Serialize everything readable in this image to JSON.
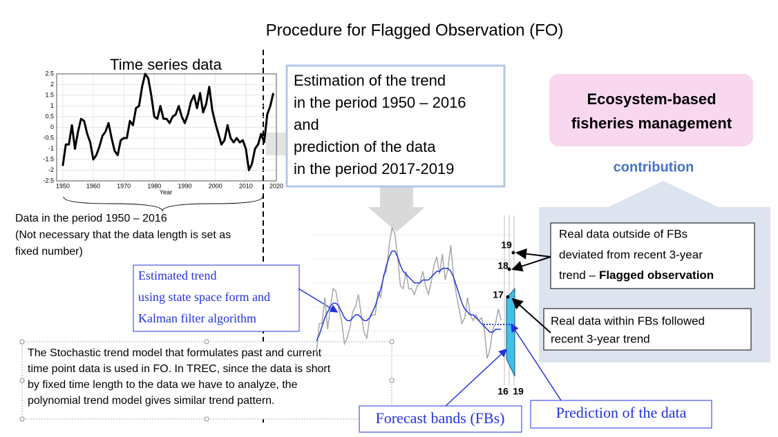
{
  "title": "Procedure for Flagged Observation (FO)",
  "chart_data": [
    {
      "type": "line",
      "title": "Time series data",
      "x_label": "Year",
      "color": "#000000",
      "grid": true,
      "x": [
        1950,
        1951,
        1952,
        1953,
        1954,
        1955,
        1956,
        1957,
        1958,
        1959,
        1960,
        1961,
        1962,
        1963,
        1964,
        1965,
        1966,
        1967,
        1968,
        1969,
        1970,
        1971,
        1972,
        1973,
        1974,
        1975,
        1976,
        1977,
        1978,
        1979,
        1980,
        1981,
        1982,
        1983,
        1984,
        1985,
        1986,
        1987,
        1988,
        1989,
        1990,
        1991,
        1992,
        1993,
        1994,
        1995,
        1996,
        1997,
        1998,
        1999,
        2000,
        2001,
        2002,
        2003,
        2004,
        2005,
        2006,
        2007,
        2008,
        2009,
        2010,
        2011,
        2012,
        2013,
        2014,
        2015,
        2016,
        2017,
        2018,
        2019
      ],
      "values": [
        -1.8,
        -0.8,
        -0.8,
        0.1,
        -1.0,
        -0.2,
        0.4,
        0.3,
        -0.3,
        -0.7,
        -1.5,
        -1.3,
        -0.9,
        -0.4,
        -0.2,
        0.2,
        -0.5,
        -1.1,
        -1.3,
        -0.6,
        -0.5,
        -0.5,
        0.3,
        0.1,
        0.9,
        1.0,
        1.9,
        2.5,
        2.3,
        1.5,
        0.5,
        0.4,
        1.0,
        0.4,
        0.4,
        0.2,
        0.5,
        0.6,
        1.0,
        0.5,
        0.2,
        0.6,
        1.2,
        1.5,
        0.9,
        1.6,
        0.7,
        1.1,
        1.9,
        0.8,
        0.2,
        -0.3,
        -0.8,
        -0.6,
        0.1,
        -0.5,
        -0.7,
        -0.5,
        -0.7,
        -0.6,
        -1.0,
        -2.0,
        -1.7,
        -1.0,
        -0.8,
        -0.3,
        -0.7,
        0.6,
        1.0,
        1.6
      ],
      "xlim": [
        1948,
        2020
      ],
      "xticks": [
        1950,
        1960,
        1970,
        1980,
        1990,
        2000,
        2010,
        2020
      ],
      "ylim": [
        -2.5,
        2.5
      ],
      "yticks": [
        2.5,
        2,
        1.5,
        1,
        0.5,
        0,
        -0.5,
        -1,
        -1.5,
        -2,
        -2.5
      ]
    },
    {
      "type": "line",
      "x": [
        1950,
        1951,
        1952,
        1953,
        1954,
        1955,
        1956,
        1957,
        1958,
        1959,
        1960,
        1961,
        1962,
        1963,
        1964,
        1965,
        1966,
        1967,
        1968,
        1969,
        1970,
        1971,
        1972,
        1973,
        1974,
        1975,
        1976,
        1977,
        1978,
        1979,
        1980,
        1981,
        1982,
        1983,
        1984,
        1985,
        1986,
        1987,
        1988,
        1989,
        1990,
        1991,
        1992,
        1993,
        1994,
        1995,
        1996,
        1997,
        1998,
        1999,
        2000,
        2001,
        2002,
        2003,
        2004,
        2005,
        2006,
        2007,
        2008,
        2009,
        2010,
        2011,
        2012,
        2013,
        2014,
        2015,
        2016
      ],
      "series": [
        {
          "color": "#a6a6a6",
          "values": [
            -1.8,
            -0.8,
            -0.8,
            0.1,
            -1.0,
            -0.2,
            0.4,
            0.3,
            -0.3,
            -0.7,
            -1.5,
            -1.3,
            -0.9,
            -0.4,
            -0.2,
            0.2,
            -0.5,
            -1.1,
            -1.3,
            -0.6,
            -0.5,
            -0.5,
            0.3,
            0.1,
            0.9,
            1.0,
            1.9,
            2.5,
            2.3,
            1.5,
            0.5,
            0.4,
            1.0,
            0.4,
            0.4,
            0.2,
            0.5,
            0.6,
            1.0,
            0.5,
            0.2,
            0.6,
            1.2,
            1.5,
            0.9,
            1.6,
            0.7,
            1.1,
            1.9,
            0.8,
            0.2,
            -0.3,
            -0.8,
            -0.6,
            0.1,
            -0.5,
            -0.7,
            -0.5,
            -0.7,
            -0.6,
            -1.0,
            -2.0,
            -1.7,
            -1.0,
            -0.8,
            -0.3,
            -0.7
          ]
        },
        {
          "color": "#2233dd",
          "values": [
            -1.4,
            -1.2,
            -0.9,
            -0.6,
            -0.4,
            -0.2,
            -0.1,
            -0.1,
            -0.2,
            -0.4,
            -0.6,
            -0.7,
            -0.7,
            -0.6,
            -0.5,
            -0.5,
            -0.6,
            -0.7,
            -0.7,
            -0.6,
            -0.4,
            -0.2,
            0.1,
            0.4,
            0.8,
            1.2,
            1.5,
            1.7,
            1.7,
            1.5,
            1.2,
            1.0,
            0.9,
            0.8,
            0.7,
            0.6,
            0.6,
            0.6,
            0.7,
            0.7,
            0.7,
            0.8,
            0.9,
            1.0,
            1.0,
            1.1,
            1.1,
            1.1,
            1.0,
            0.8,
            0.5,
            0.2,
            -0.1,
            -0.3,
            -0.4,
            -0.5,
            -0.5,
            -0.6,
            -0.7,
            -0.8,
            -0.9,
            -1.0,
            -1.1,
            -1.1,
            -1.0,
            -1.0,
            -1.0
          ]
        }
      ],
      "point_labels": [
        "19",
        "18",
        "17"
      ],
      "axis_labels": [
        "16",
        "19"
      ]
    }
  ],
  "left_note": [
    "Data in the period 1950 – 2016",
    "(Not necessary that the data length is set as",
    "fixed number)"
  ],
  "estimation_box": [
    "Estimation of the trend",
    "in the period 1950 – 2016",
    "and",
    "prediction of the data",
    "in the period 2017-2019"
  ],
  "management_box": [
    "Ecosystem-based",
    "fisheries management"
  ],
  "contribution": "contribution",
  "flagged_box": {
    "lines": [
      "Real data outside of FBs",
      "deviated from recent 3-year",
      "trend –"
    ],
    "bold": "Flagged observation"
  },
  "within_box": [
    "Real data within FBs followed",
    "recent 3-year trend"
  ],
  "trend_label": [
    "Estimated trend",
    "using state space form and",
    "Kalman filter algorithm"
  ],
  "model_note": [
    "The Stochastic trend model that formulates past and current",
    "time point data is used in FO. In TREC, since the data is short",
    "by fixed time length to the data we have to analyze, the",
    "polynomial trend model gives similar trend pattern."
  ],
  "forecast_bands": "Forecast bands (FBs)",
  "prediction": "Prediction of the data"
}
